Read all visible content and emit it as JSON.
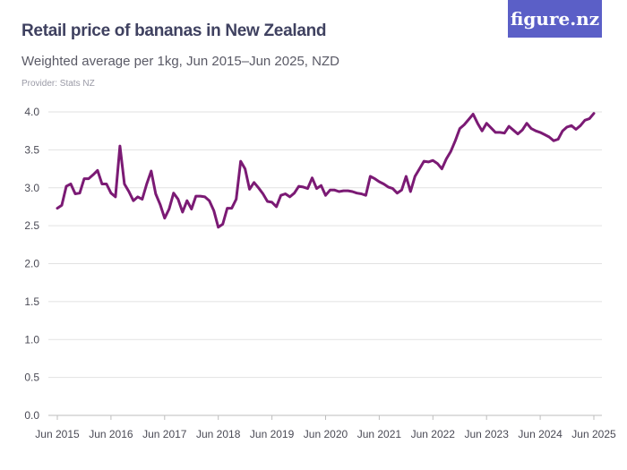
{
  "title": "Retail price of bananas in New Zealand",
  "subtitle": "Weighted average per 1kg, Jun 2015–Jun 2025, NZD",
  "provider": "Provider: Stats NZ",
  "logo": "figure.nz",
  "colors": {
    "line": "#7b1a74",
    "logo_bg": "#5b5fc7",
    "grid": "#e2e2e2"
  },
  "chart_data": {
    "type": "line",
    "title": "Retail price of bananas in New Zealand",
    "ylim": [
      0,
      4.0
    ],
    "yticks": [
      "0.0",
      "0.5",
      "1.0",
      "1.5",
      "2.0",
      "2.5",
      "3.0",
      "3.5",
      "4.0"
    ],
    "xticks": [
      "Jun 2015",
      "Jun 2016",
      "Jun 2017",
      "Jun 2018",
      "Jun 2019",
      "Jun 2020",
      "Jun 2021",
      "Jun 2022",
      "Jun 2023",
      "Jun 2024",
      "Jun 2025"
    ],
    "grid": true,
    "frequency": "monthly",
    "x_range": [
      "Jun 2015",
      "Jun 2025"
    ],
    "values": [
      2.73,
      2.77,
      3.02,
      3.05,
      2.92,
      2.93,
      3.12,
      3.12,
      3.17,
      3.23,
      3.05,
      3.05,
      2.93,
      2.88,
      3.55,
      3.05,
      2.95,
      2.83,
      2.88,
      2.85,
      3.05,
      3.22,
      2.92,
      2.78,
      2.6,
      2.72,
      2.93,
      2.85,
      2.68,
      2.83,
      2.72,
      2.89,
      2.89,
      2.88,
      2.83,
      2.7,
      2.48,
      2.52,
      2.73,
      2.73,
      2.85,
      3.35,
      3.25,
      2.98,
      3.07,
      3.0,
      2.92,
      2.82,
      2.81,
      2.75,
      2.9,
      2.92,
      2.88,
      2.93,
      3.02,
      3.01,
      2.99,
      3.13,
      2.99,
      3.03,
      2.9,
      2.97,
      2.97,
      2.95,
      2.96,
      2.96,
      2.95,
      2.93,
      2.92,
      2.9,
      3.15,
      3.12,
      3.08,
      3.05,
      3.01,
      2.99,
      2.93,
      2.97,
      3.15,
      2.95,
      3.15,
      3.25,
      3.35,
      3.34,
      3.36,
      3.32,
      3.25,
      3.38,
      3.48,
      3.62,
      3.78,
      3.83,
      3.9,
      3.97,
      3.85,
      3.75,
      3.85,
      3.79,
      3.73,
      3.73,
      3.72,
      3.81,
      3.76,
      3.71,
      3.76,
      3.85,
      3.78,
      3.75,
      3.73,
      3.7,
      3.67,
      3.62,
      3.64,
      3.75,
      3.8,
      3.82,
      3.77,
      3.82,
      3.89,
      3.91,
      3.98
    ]
  }
}
